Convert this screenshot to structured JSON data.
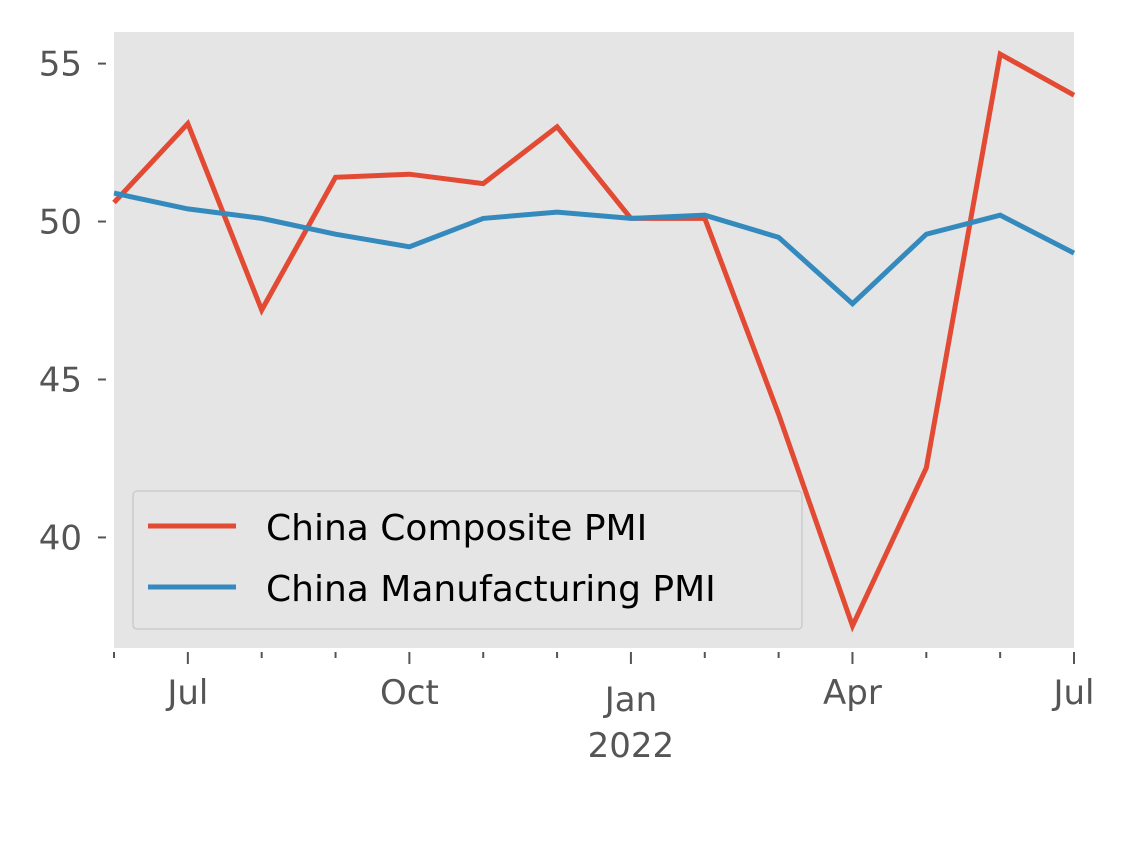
{
  "chart_data": {
    "type": "line",
    "x": [
      "2021-06",
      "2021-07",
      "2021-08",
      "2021-09",
      "2021-10",
      "2021-11",
      "2021-12",
      "2022-01",
      "2022-02",
      "2022-03",
      "2022-04",
      "2022-05",
      "2022-06",
      "2022-07"
    ],
    "series": [
      {
        "name": "China Composite PMI",
        "color": "#E24A33",
        "values": [
          50.6,
          53.1,
          47.2,
          51.4,
          51.5,
          51.2,
          53.0,
          50.1,
          50.1,
          43.9,
          37.2,
          42.2,
          55.3,
          54.0
        ]
      },
      {
        "name": "China Manufacturing PMI",
        "color": "#348ABD",
        "values": [
          50.9,
          50.4,
          50.1,
          49.6,
          49.2,
          50.1,
          50.3,
          50.1,
          50.2,
          49.5,
          47.4,
          49.6,
          50.2,
          49.0
        ]
      }
    ],
    "ylim": [
      36.5,
      56.0
    ],
    "yticks": [
      40,
      45,
      50,
      55
    ],
    "ytick_labels": [
      "40",
      "45",
      "50",
      "55"
    ],
    "xticks_major": [
      {
        "x": "2021-07",
        "label": "Jul",
        "sublabel": ""
      },
      {
        "x": "2021-10",
        "label": "Oct",
        "sublabel": ""
      },
      {
        "x": "2022-01",
        "label": "Jan",
        "sublabel": "2022"
      },
      {
        "x": "2022-04",
        "label": "Apr",
        "sublabel": ""
      },
      {
        "x": "2022-07",
        "label": "Jul",
        "sublabel": ""
      }
    ],
    "grid": false,
    "legend": "lower-left",
    "title": "",
    "xlabel": "",
    "ylabel": "",
    "background": "#E5E5E5"
  }
}
